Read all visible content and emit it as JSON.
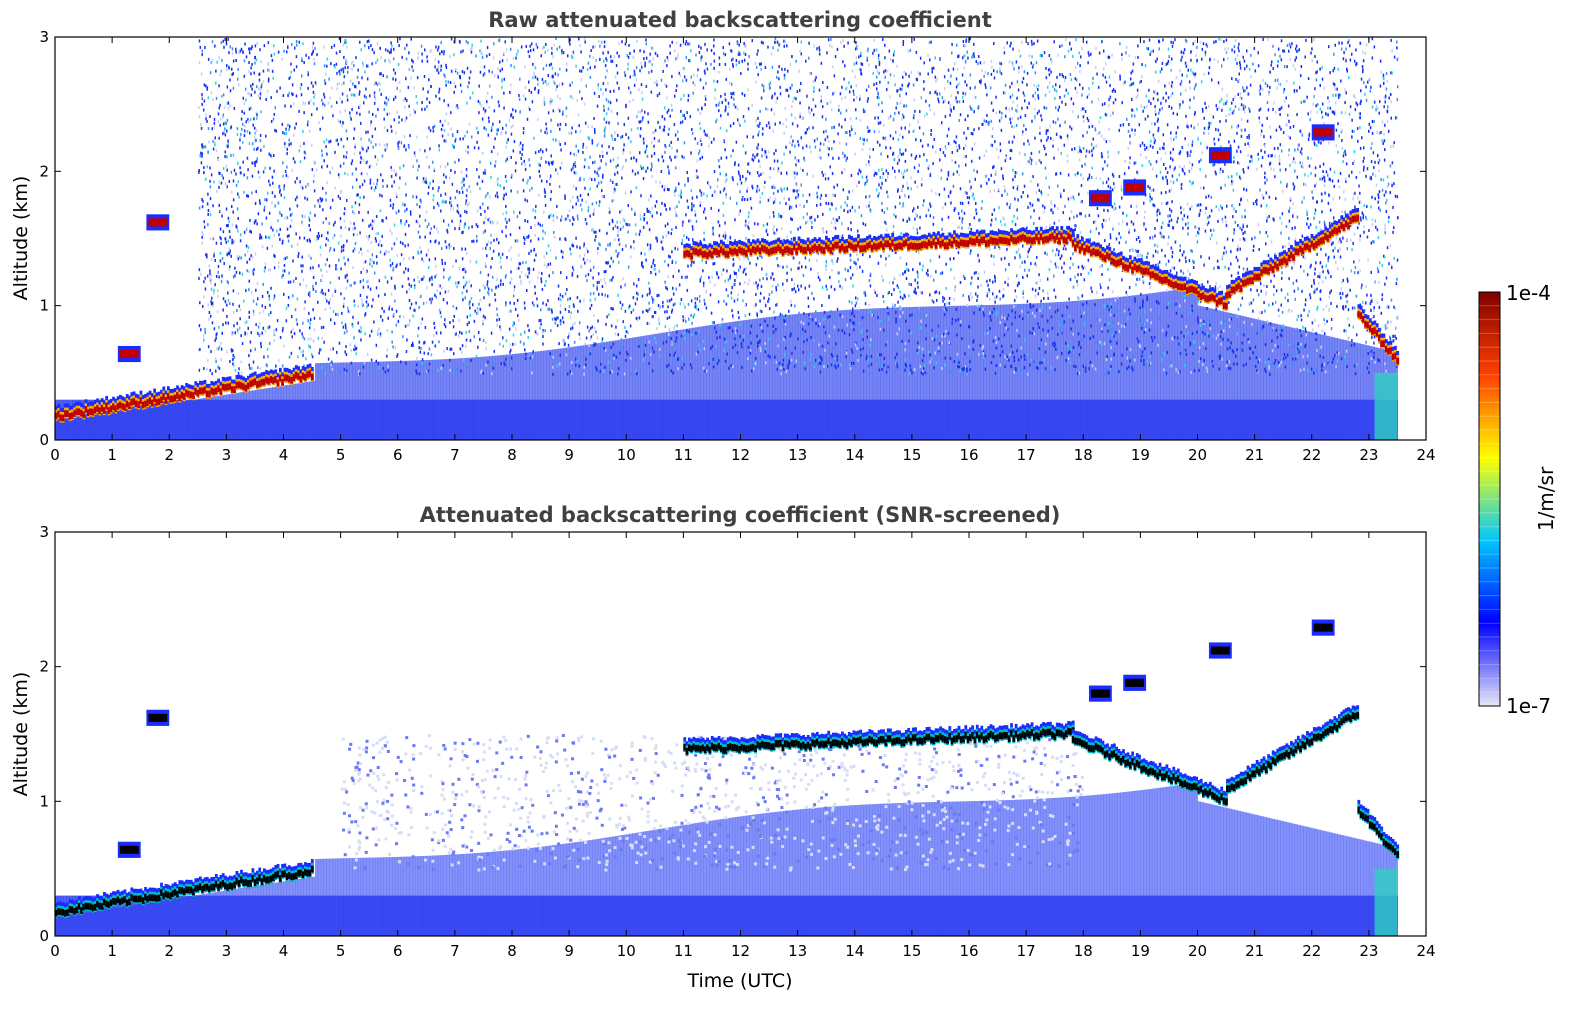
{
  "chart_data": [
    {
      "type": "heatmap",
      "title": "Raw attenuated backscattering coefficient",
      "xlabel": "",
      "ylabel": "Altitude (km)",
      "xlim": [
        0,
        24
      ],
      "ylim": [
        0,
        3
      ],
      "xticks": [
        0,
        1,
        2,
        3,
        4,
        5,
        6,
        7,
        8,
        9,
        10,
        11,
        12,
        13,
        14,
        15,
        16,
        17,
        18,
        19,
        20,
        21,
        22,
        23,
        24
      ],
      "yticks": [
        0,
        1,
        2,
        3
      ],
      "data_end_time": 23.5,
      "noise_background": true,
      "layers": [
        {
          "t_start": 0.0,
          "t_end": 4.5,
          "alt": [
            0.14,
            0.45
          ]
        },
        {
          "t_start": 11.0,
          "t_end": 17.8,
          "alt": [
            1.35,
            1.47
          ]
        },
        {
          "t_start": 17.8,
          "t_end": 20.5,
          "alt": [
            1.42,
            0.97
          ]
        },
        {
          "t_start": 20.5,
          "t_end": 22.8,
          "alt": [
            1.05,
            1.62
          ]
        },
        {
          "t_start": 22.8,
          "t_end": 23.5,
          "alt": [
            0.9,
            0.55
          ]
        }
      ],
      "upper_clouds": [
        {
          "t": 18.3,
          "alt": 1.78
        },
        {
          "t": 18.9,
          "alt": 1.86
        },
        {
          "t": 20.4,
          "alt": 2.1
        },
        {
          "t": 22.2,
          "alt": 2.27
        },
        {
          "t": 1.8,
          "alt": 1.6
        },
        {
          "t": 1.3,
          "alt": 0.62
        }
      ]
    },
    {
      "type": "heatmap",
      "title": "Attenuated backscattering coefficient (SNR-screened)",
      "xlabel": "Time (UTC)",
      "ylabel": "Altitude (km)",
      "xlim": [
        0,
        24
      ],
      "ylim": [
        0,
        3
      ],
      "xticks": [
        0,
        1,
        2,
        3,
        4,
        5,
        6,
        7,
        8,
        9,
        10,
        11,
        12,
        13,
        14,
        15,
        16,
        17,
        18,
        19,
        20,
        21,
        22,
        23,
        24
      ],
      "yticks": [
        0,
        1,
        2,
        3
      ],
      "data_end_time": 23.5,
      "noise_background": false,
      "layers": [
        {
          "t_start": 0.0,
          "t_end": 4.5,
          "alt": [
            0.14,
            0.45
          ]
        },
        {
          "t_start": 11.0,
          "t_end": 17.8,
          "alt": [
            1.35,
            1.47
          ]
        },
        {
          "t_start": 17.8,
          "t_end": 20.5,
          "alt": [
            1.42,
            0.97
          ]
        },
        {
          "t_start": 20.5,
          "t_end": 22.8,
          "alt": [
            1.05,
            1.62
          ]
        },
        {
          "t_start": 22.8,
          "t_end": 23.5,
          "alt": [
            0.9,
            0.55
          ]
        }
      ],
      "upper_clouds": [
        {
          "t": 18.3,
          "alt": 1.78
        },
        {
          "t": 18.9,
          "alt": 1.86
        },
        {
          "t": 20.4,
          "alt": 2.1
        },
        {
          "t": 22.2,
          "alt": 2.27
        },
        {
          "t": 1.8,
          "alt": 1.6
        },
        {
          "t": 1.3,
          "alt": 0.62
        }
      ]
    }
  ],
  "colorbar": {
    "label": "1/m/sr",
    "max_label": "1e-4",
    "min_label": "1e-7",
    "colormap": [
      "#e8e8f8",
      "#0000ff",
      "#00c8ff",
      "#ffff00",
      "#ff4000",
      "#800000"
    ]
  }
}
